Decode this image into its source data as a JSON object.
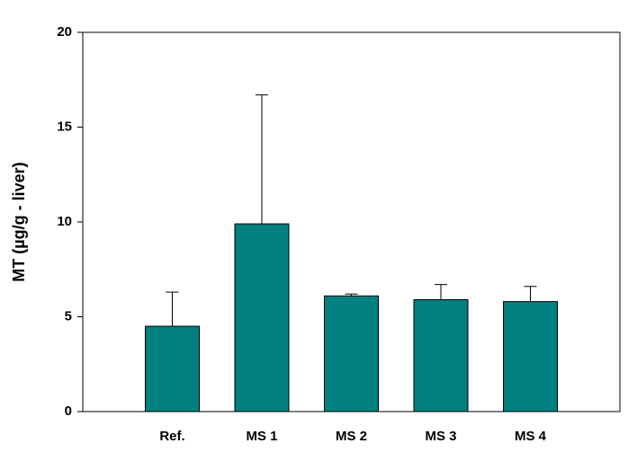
{
  "chart_data": {
    "type": "bar",
    "y_label": "MT (µg/g - liver)",
    "categories": [
      "Ref.",
      "MS 1",
      "MS 2",
      "MS 3",
      "MS 4"
    ],
    "values": [
      4.5,
      9.9,
      6.1,
      5.9,
      5.8
    ],
    "errors": [
      1.8,
      6.8,
      0.1,
      0.8,
      0.8
    ],
    "color": "#008080",
    "ylim": [
      0,
      20
    ],
    "yticks": [
      0,
      5,
      10,
      15,
      20
    ],
    "grid": false
  }
}
